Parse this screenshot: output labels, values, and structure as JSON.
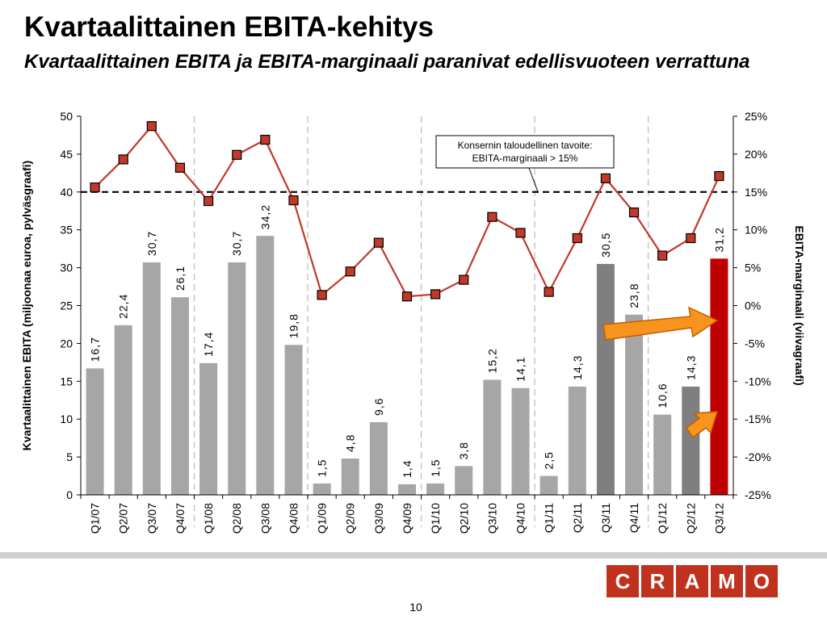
{
  "slide": {
    "title": "Kvartaalittainen EBITA-kehitys",
    "subtitle": "Kvartaalittainen EBITA ja EBITA-marginaali paranivat edellisvuoteen verrattuna",
    "page_number": "10"
  },
  "logo": {
    "letters": [
      "C",
      "R",
      "A",
      "M",
      "O"
    ],
    "color": "#c0311e"
  },
  "chart_data": {
    "type": "bar",
    "categories": [
      "Q1/07",
      "Q2/07",
      "Q3/07",
      "Q4/07",
      "Q1/08",
      "Q2/08",
      "Q3/08",
      "Q4/08",
      "Q1/09",
      "Q2/09",
      "Q3/09",
      "Q4/09",
      "Q1/10",
      "Q2/10",
      "Q3/10",
      "Q4/10",
      "Q1/11",
      "Q2/11",
      "Q3/11",
      "Q4/11",
      "Q1/12",
      "Q2/12",
      "Q3/12"
    ],
    "series": [
      {
        "kind": "bar",
        "values": [
          16.7,
          22.4,
          30.7,
          26.1,
          17.4,
          30.7,
          34.2,
          19.8,
          1.5,
          4.8,
          9.6,
          1.4,
          1.5,
          3.8,
          15.2,
          14.1,
          2.5,
          14.3,
          30.5,
          23.8,
          10.6,
          14.3,
          31.2
        ],
        "data_labels": [
          "16,7",
          "22,4",
          "30,7",
          "26,1",
          "17,4",
          "30,7",
          "34,2",
          "19,8",
          "1,5",
          "4,8",
          "9,6",
          "1,4",
          "1,5",
          "3,8",
          "15,2",
          "14,1",
          "2,5",
          "14,3",
          "30,5",
          "23,8",
          "10,6",
          "14,3",
          "31,2"
        ],
        "axis": "left"
      },
      {
        "kind": "line",
        "values": [
          15.6,
          19.3,
          23.7,
          18.2,
          13.8,
          19.9,
          21.9,
          13.9,
          1.4,
          4.5,
          8.3,
          1.2,
          1.5,
          3.4,
          11.7,
          9.6,
          1.8,
          8.9,
          16.8,
          12.3,
          6.6,
          8.9,
          17.1
        ],
        "axis": "right"
      }
    ],
    "y_left": {
      "label": "Kvartaalittainen EBITA (miljoonaa  euroa, pylväsgraafi)",
      "range": [
        0,
        50
      ],
      "ticks": [
        "0",
        "5",
        "10",
        "15",
        "20",
        "25",
        "30",
        "35",
        "40",
        "45",
        "50"
      ]
    },
    "y_right": {
      "label": "EBITA-marginaali  (viivagraafi)",
      "range": [
        -25,
        25
      ],
      "ticks": [
        "-25%",
        "-20%",
        "-15%",
        "-10%",
        "-5%",
        "0%",
        "5%",
        "10%",
        "15%",
        "20%",
        "25%"
      ]
    },
    "target_line": {
      "value": 15,
      "axis": "right"
    },
    "annotation": {
      "line1": "Konsernin taloudellinen tavoite:",
      "line2": "EBITA-marginaali > 15%"
    },
    "highlight_indices": [
      18,
      21,
      22
    ],
    "colors": {
      "bar": "#a6a6a6",
      "bar_dark": "#7f7f7f",
      "bar_highlight": "#c00000",
      "line": "#c0392b",
      "marker": "#c0392b",
      "arrow": "#f7941d",
      "target": "#000000"
    },
    "grid": "year-separators dashed",
    "legend": "none"
  }
}
